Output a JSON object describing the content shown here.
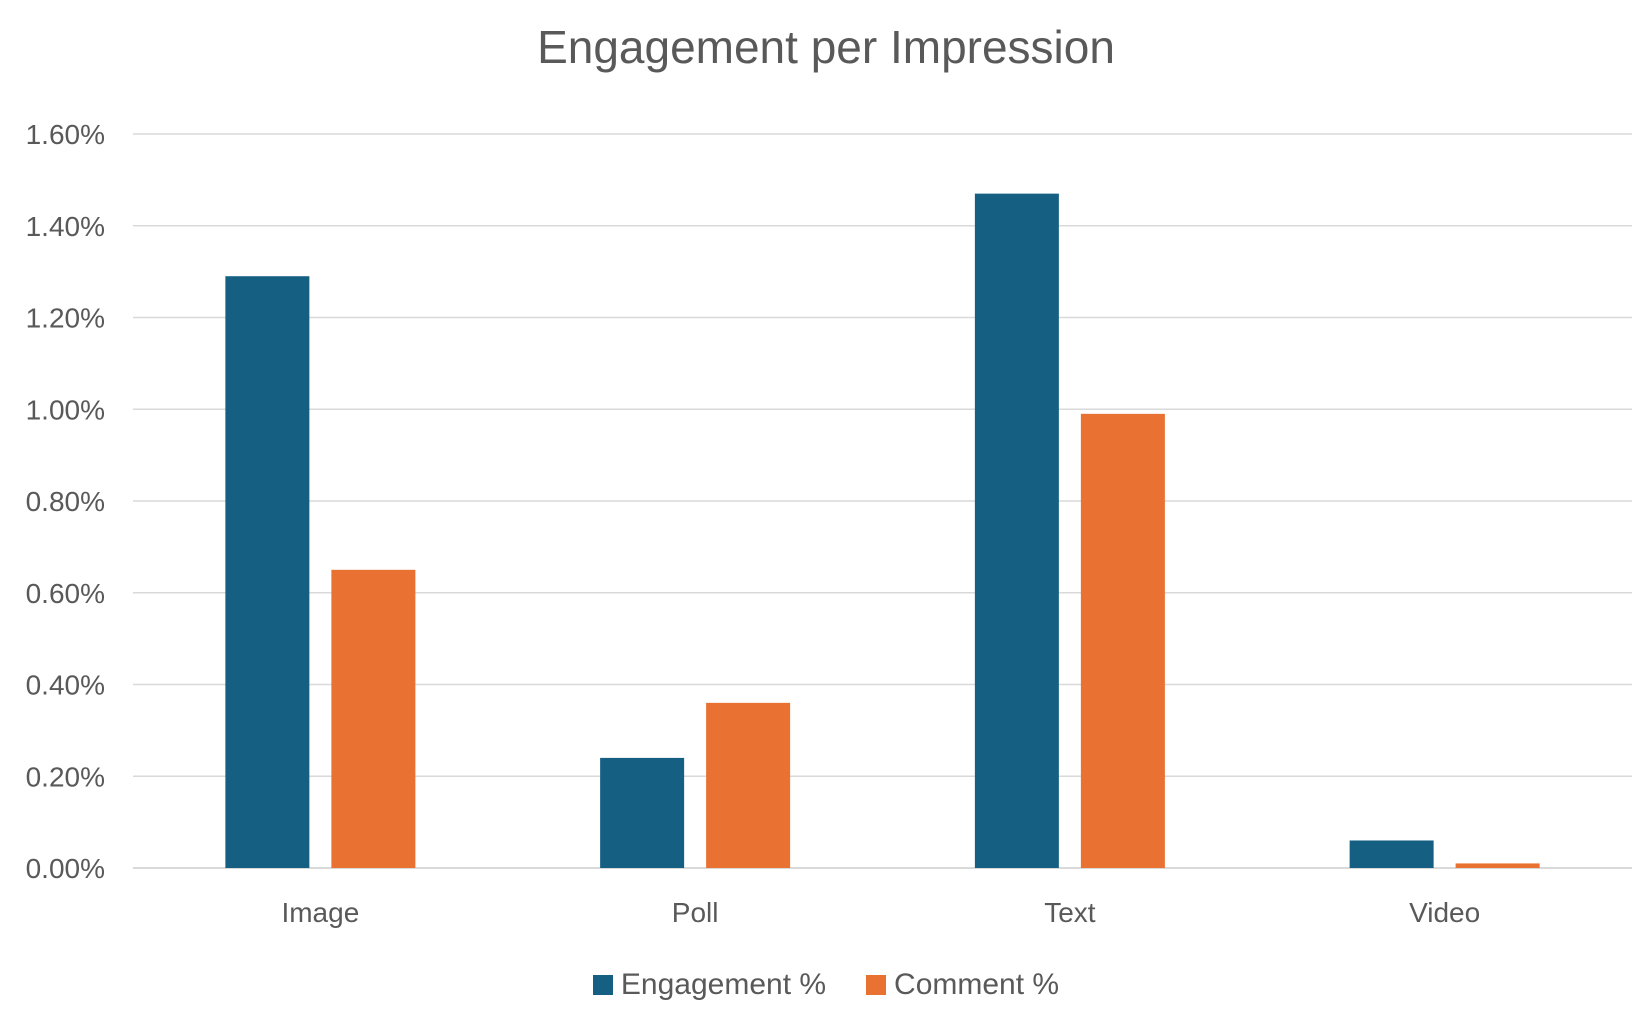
{
  "chart_data": {
    "type": "bar",
    "title": "Engagement per Impression",
    "xlabel": "",
    "ylabel": "",
    "categories": [
      "Image",
      "Poll",
      "Text",
      "Video"
    ],
    "series": [
      {
        "name": "Engagement %",
        "color": "#156082",
        "values": [
          1.29,
          0.24,
          1.47,
          0.06
        ]
      },
      {
        "name": "Comment %",
        "color": "#E97132",
        "values": [
          0.65,
          0.36,
          0.99,
          0.01
        ]
      }
    ],
    "ylim": [
      0,
      1.6
    ],
    "yticks": [
      "0.00%",
      "0.20%",
      "0.40%",
      "0.60%",
      "0.80%",
      "1.00%",
      "1.20%",
      "1.40%",
      "1.60%"
    ],
    "grid": true,
    "legend_position": "bottom"
  }
}
